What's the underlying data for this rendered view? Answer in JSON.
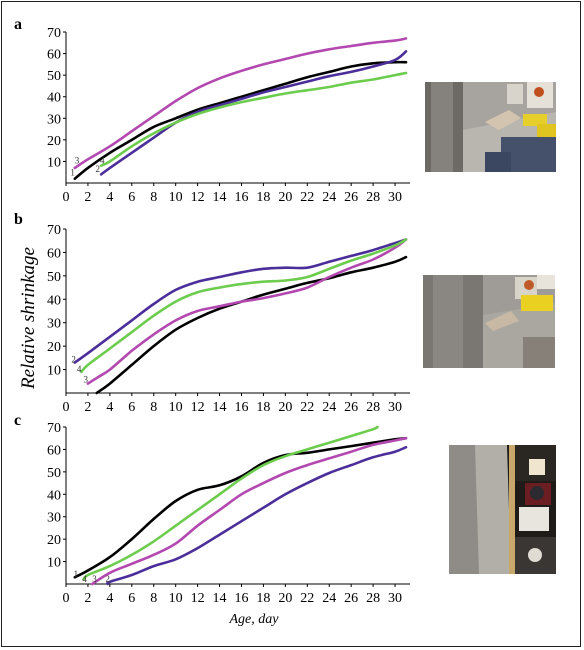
{
  "figure": {
    "ylabel": "Relative shrinkage",
    "xlabel": "Age, day"
  },
  "colors": {
    "1": "#000000",
    "2": "#4b2e9a",
    "3": "#b348b0",
    "4": "#6ccc4d"
  },
  "chart_data": [
    {
      "type": "line",
      "panel_label": "a",
      "xlim": [
        0,
        31
      ],
      "ylim": [
        0,
        70
      ],
      "x_ticks": [
        0,
        2,
        4,
        6,
        8,
        10,
        12,
        14,
        16,
        18,
        20,
        22,
        24,
        26,
        28,
        30
      ],
      "y_ticks": [
        10,
        20,
        30,
        40,
        50,
        60,
        70
      ],
      "grid": false,
      "series": [
        {
          "name": "1",
          "x": [
            0.8,
            2,
            4,
            6,
            8,
            10,
            12,
            14,
            16,
            18,
            20,
            22,
            24,
            26,
            28,
            30,
            31
          ],
          "y": [
            2,
            7,
            14,
            20,
            26,
            30,
            34,
            37,
            40,
            43,
            46,
            49,
            51.5,
            54,
            55.5,
            56,
            56
          ]
        },
        {
          "name": "2",
          "x": [
            3.2,
            4,
            6,
            8,
            10,
            12,
            14,
            16,
            18,
            20,
            22,
            24,
            26,
            28,
            30,
            31
          ],
          "y": [
            4,
            7,
            14,
            21,
            28,
            33,
            36,
            39,
            42,
            44.5,
            47,
            49.5,
            51.5,
            54,
            57,
            61
          ]
        },
        {
          "name": "3",
          "x": [
            0.8,
            2,
            4,
            6,
            8,
            10,
            12,
            14,
            16,
            18,
            20,
            22,
            24,
            26,
            28,
            30,
            31
          ],
          "y": [
            7,
            11,
            17,
            24,
            31,
            38,
            44,
            48.5,
            52,
            55,
            57.5,
            60,
            62,
            63.5,
            65,
            66,
            67
          ]
        },
        {
          "name": "4",
          "x": [
            3.2,
            4,
            6,
            8,
            10,
            12,
            14,
            16,
            18,
            20,
            22,
            24,
            26,
            28,
            30,
            31
          ],
          "y": [
            8,
            10,
            17,
            23,
            28,
            32,
            35,
            37.5,
            39.5,
            41.5,
            43,
            44.5,
            46.5,
            48,
            50,
            51
          ]
        }
      ]
    },
    {
      "type": "line",
      "panel_label": "b",
      "xlim": [
        0,
        31
      ],
      "ylim": [
        0,
        70
      ],
      "x_ticks": [
        0,
        2,
        4,
        6,
        8,
        10,
        12,
        14,
        16,
        18,
        20,
        22,
        24,
        26,
        28,
        30
      ],
      "y_ticks": [
        10,
        20,
        30,
        40,
        50,
        60,
        70
      ],
      "grid": false,
      "series": [
        {
          "name": "1",
          "x": [
            2.8,
            4,
            6,
            8,
            10,
            12,
            14,
            16,
            18,
            20,
            22,
            24,
            26,
            28,
            30,
            31
          ],
          "y": [
            0,
            4,
            12,
            20,
            27,
            32,
            36,
            39,
            42,
            44.5,
            47,
            49,
            51.5,
            53.5,
            56,
            58
          ]
        },
        {
          "name": "2",
          "x": [
            0.8,
            2,
            4,
            6,
            8,
            10,
            12,
            14,
            16,
            18,
            20,
            22,
            24,
            26,
            28,
            30,
            31
          ],
          "y": [
            13,
            17,
            24,
            31,
            38,
            44,
            47.5,
            49.5,
            51.5,
            53,
            53.5,
            53.5,
            56,
            58.5,
            61,
            64,
            65.5
          ]
        },
        {
          "name": "3",
          "x": [
            2,
            3,
            4,
            6,
            8,
            10,
            12,
            14,
            16,
            18,
            20,
            22,
            24,
            26,
            28,
            30,
            31
          ],
          "y": [
            4,
            7,
            10,
            18,
            25,
            31,
            35,
            37,
            39,
            40.5,
            42.5,
            45,
            49.5,
            53.5,
            57,
            62,
            65.5
          ]
        },
        {
          "name": "4",
          "x": [
            1.4,
            2,
            4,
            6,
            8,
            10,
            12,
            14,
            16,
            18,
            20,
            22,
            24,
            26,
            28,
            30,
            31
          ],
          "y": [
            9,
            12,
            19,
            26,
            33,
            39,
            43,
            45,
            46.5,
            47.5,
            48,
            49.5,
            53,
            56.5,
            59.5,
            63,
            65.5
          ]
        }
      ]
    },
    {
      "type": "line",
      "panel_label": "c",
      "xlim": [
        0,
        31
      ],
      "ylim": [
        0,
        70
      ],
      "x_ticks": [
        0,
        2,
        4,
        6,
        8,
        10,
        12,
        14,
        16,
        18,
        20,
        22,
        24,
        26,
        28,
        30
      ],
      "y_ticks": [
        10,
        20,
        30,
        40,
        50,
        60,
        70
      ],
      "grid": false,
      "series": [
        {
          "name": "1",
          "x": [
            0.8,
            2,
            4,
            6,
            8,
            10,
            12,
            14,
            16,
            18,
            20,
            22,
            24,
            26,
            28,
            30,
            31
          ],
          "y": [
            3,
            6,
            12,
            20,
            29,
            37,
            42,
            44,
            48,
            54,
            57.5,
            58.5,
            60,
            61.5,
            63,
            64.5,
            65
          ]
        },
        {
          "name": "2",
          "x": [
            3.8,
            4,
            6,
            8,
            10,
            12,
            14,
            16,
            18,
            20,
            22,
            24,
            26,
            28,
            30,
            31
          ],
          "y": [
            0,
            1,
            4,
            8,
            11,
            16,
            22,
            28,
            34,
            40,
            45,
            49.5,
            53,
            56.5,
            59,
            61
          ]
        },
        {
          "name": "3",
          "x": [
            2.4,
            4,
            6,
            8,
            10,
            12,
            14,
            16,
            18,
            20,
            22,
            24,
            26,
            28,
            30,
            31
          ],
          "y": [
            0,
            5,
            9,
            13,
            18,
            26,
            33,
            40,
            45,
            49.5,
            53,
            56,
            59,
            62,
            64,
            65
          ]
        },
        {
          "name": "4",
          "x": [
            1.6,
            2,
            4,
            6,
            8,
            10,
            12,
            14,
            16,
            18,
            20,
            22,
            24,
            26,
            28,
            28.4
          ],
          "y": [
            2,
            4,
            8,
            13,
            19,
            26,
            33,
            40,
            47,
            53,
            57,
            60,
            63,
            66,
            69,
            70
          ]
        }
      ]
    }
  ],
  "labels_positions_note": ""
}
